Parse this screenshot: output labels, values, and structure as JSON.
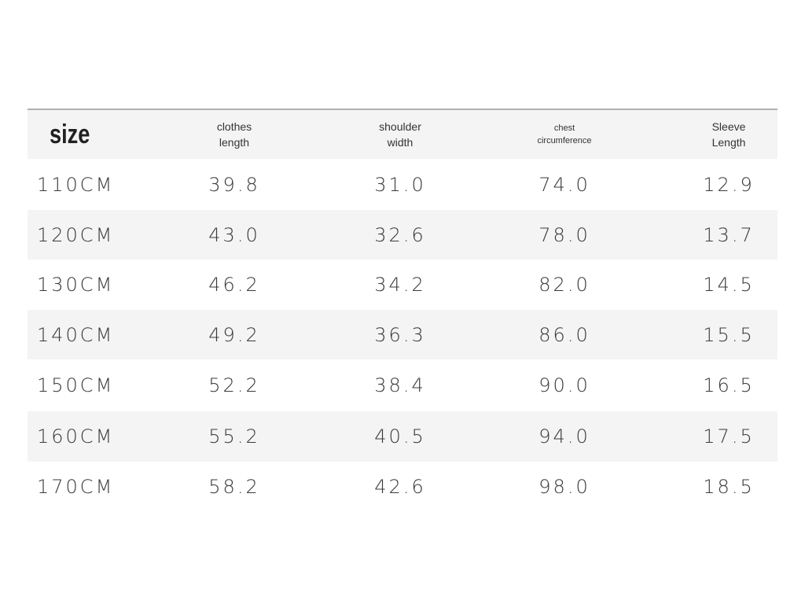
{
  "table": {
    "header": [
      [
        "size"
      ],
      [
        "clothes",
        "length"
      ],
      [
        "shoulder",
        "width"
      ],
      [
        "chest",
        "circumference"
      ],
      [
        "Sleeve",
        "Length"
      ]
    ],
    "rows": [
      [
        "110CM",
        "39.8",
        "31.0",
        "74.0",
        "12.9"
      ],
      [
        "120CM",
        "43.0",
        "32.6",
        "78.0",
        "13.7"
      ],
      [
        "130CM",
        "46.2",
        "34.2",
        "82.0",
        "14.5"
      ],
      [
        "140CM",
        "49.2",
        "36.3",
        "86.0",
        "15.5"
      ],
      [
        "150CM",
        "52.2",
        "38.4",
        "90.0",
        "16.5"
      ],
      [
        "160CM",
        "55.2",
        "40.5",
        "94.0",
        "17.5"
      ],
      [
        "170CM",
        "58.2",
        "42.6",
        "98.0",
        "18.5"
      ]
    ]
  }
}
